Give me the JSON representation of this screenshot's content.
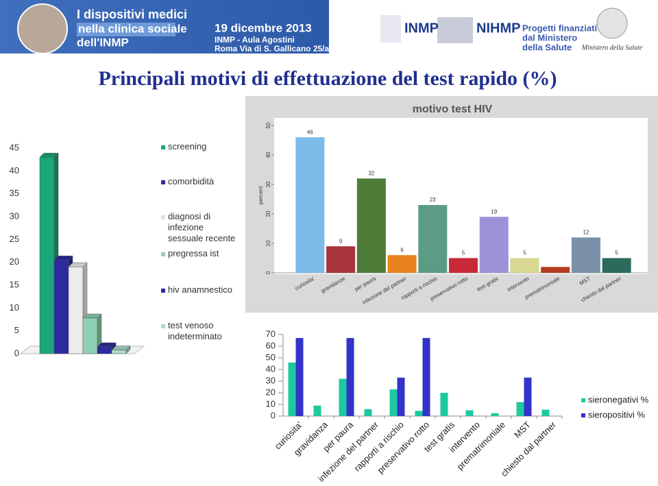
{
  "header": {
    "event_title": [
      "I dispositivi medici",
      "nella clinica sociale",
      "dell'INMP"
    ],
    "date": "19 dicembre 2013",
    "venue": "INMP - Aula Agostini",
    "address": "Roma Via di S. Gallicano 25/a",
    "logos": [
      "INMP",
      "NIHMP"
    ],
    "funding": [
      "Progetti finanziati",
      "dal Ministero",
      "della Salute"
    ],
    "ministry": "Ministero della Salute"
  },
  "title": "Principali motivi di effettuazione del test rapido (%)",
  "chart_data": [
    {
      "type": "bar",
      "categories": [
        "screening",
        "comorbidità",
        "diagnosi di infezione sessuale recente",
        "pregressa ist",
        "hiv anamnestico",
        "test venoso indeterminato"
      ],
      "values": [
        43,
        20.5,
        19,
        7.8,
        1.5,
        0.8
      ],
      "colors": [
        "#1aa77b",
        "#2b2b9e",
        "#ececec",
        "#8fd0b2",
        "#2b2b9e",
        "#a9dcc8"
      ],
      "ylim": [
        0,
        45
      ],
      "yticks": [
        0,
        5,
        10,
        15,
        20,
        25,
        30,
        35,
        40,
        45
      ],
      "legend": "right"
    },
    {
      "type": "bar",
      "title": "motivo test HIV",
      "y_label": "percent",
      "categories": [
        "curiosita'",
        "gravidanze",
        "per paura",
        "infezione del partner",
        "rapporti a rischio",
        "preservativo rotto",
        "test gratis",
        "intervento",
        "prematrimoniale",
        "MST",
        "chiesto dal partner"
      ],
      "values": [
        46,
        9,
        32,
        6,
        23,
        5,
        19,
        5,
        2,
        12,
        5
      ],
      "value_labels": [
        46,
        9,
        32,
        6,
        23,
        5,
        19,
        5,
        null,
        12,
        5
      ],
      "colors": [
        "#7dbbe8",
        "#a8343c",
        "#4e7b36",
        "#e8831f",
        "#5c9b86",
        "#c92a3a",
        "#9b92d8",
        "#d8d892",
        "#b83c22",
        "#7b91a9",
        "#2b6b5b"
      ],
      "ylim": [
        0,
        50
      ],
      "yticks": [
        0,
        10,
        20,
        30,
        40,
        50
      ]
    },
    {
      "type": "bar",
      "categories": [
        "curiosita'",
        "gravidanza",
        "per paura",
        "infezione del partner",
        "rapporti a rischio",
        "preservativo rotto",
        "test gratis",
        "intervento",
        "prematrimoniale",
        "MST",
        "chiesto dal partner"
      ],
      "series": [
        {
          "name": "sieronegativi %",
          "color": "#1ec9a0",
          "values": [
            46,
            9,
            32,
            6,
            23,
            4.5,
            20,
            5,
            2.5,
            12,
            5.5
          ]
        },
        {
          "name": "sieropositivi %",
          "color": "#3333c9",
          "values": [
            67,
            0,
            67,
            0,
            33,
            67,
            0,
            0,
            0,
            33,
            0
          ]
        }
      ],
      "ylim": [
        0,
        70
      ],
      "yticks": [
        0,
        10,
        20,
        30,
        40,
        50,
        60,
        70
      ],
      "legend": "right"
    }
  ]
}
